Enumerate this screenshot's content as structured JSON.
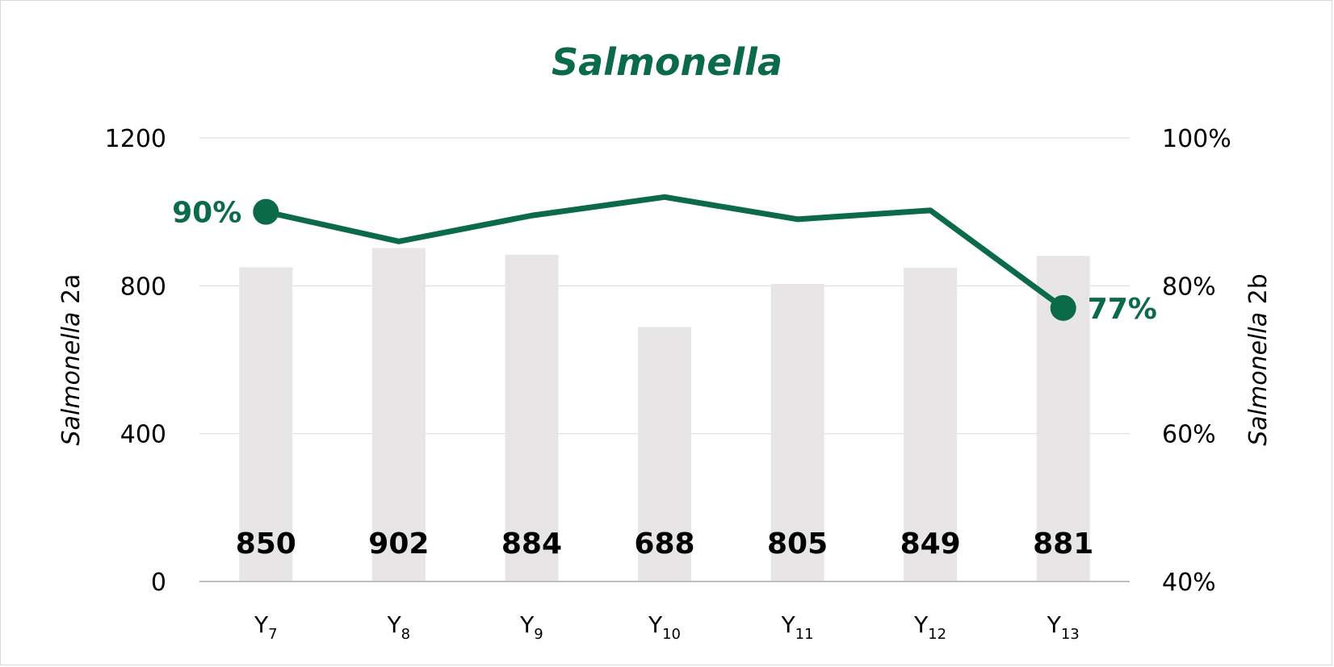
{
  "chart_data": {
    "type": "bar",
    "title": "Salmonella",
    "categories": [
      "Y7",
      "Y8",
      "Y9",
      "Y10",
      "Y11",
      "Y12",
      "Y13"
    ],
    "category_labels": [
      {
        "base": "Y",
        "sub": "7"
      },
      {
        "base": "Y",
        "sub": "8"
      },
      {
        "base": "Y",
        "sub": "9"
      },
      {
        "base": "Y",
        "sub": "10"
      },
      {
        "base": "Y",
        "sub": "11"
      },
      {
        "base": "Y",
        "sub": "12"
      },
      {
        "base": "Y",
        "sub": "13"
      }
    ],
    "bar_series": {
      "values": [
        850,
        902,
        884,
        688,
        805,
        849,
        881
      ],
      "data_labels": [
        "850",
        "902",
        "884",
        "688",
        "805",
        "849",
        "881"
      ],
      "color": "#e7e5e6"
    },
    "line_series": {
      "values": [
        90,
        86,
        89.5,
        92,
        89,
        90.2,
        77
      ],
      "labeled_points": [
        {
          "index": 0,
          "label": "90%"
        },
        {
          "index": 6,
          "label": "77%"
        }
      ],
      "color": "#0b6b48"
    },
    "y_left": {
      "label_italic": "Salmonella",
      "label_rest": " 2a",
      "range": [
        0,
        1200
      ],
      "ticks": [
        0,
        400,
        800,
        1200
      ],
      "tick_labels": [
        "0",
        "400",
        "800",
        "1200"
      ]
    },
    "y_right": {
      "label_italic": "Salmonella",
      "label_rest": " 2b",
      "range": [
        40,
        100
      ],
      "ticks": [
        40,
        60,
        80,
        100
      ],
      "tick_labels": [
        "40%",
        "60%",
        "80%",
        "100%"
      ]
    },
    "grid": true,
    "legend": "none",
    "colors": {
      "title": "#0b6b48",
      "grid": "#d9d9d9",
      "axis": "#bfbfbf"
    }
  }
}
